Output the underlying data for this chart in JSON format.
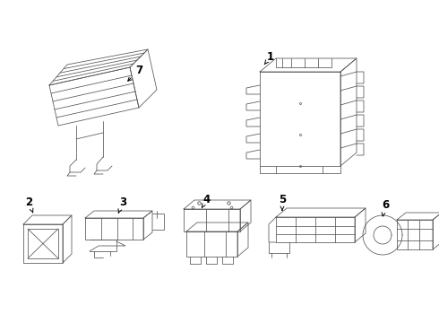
{
  "background_color": "#ffffff",
  "line_color": "#555555",
  "label_color": "#000000",
  "label_fontsize": 8.5,
  "arrow_color": "#000000",
  "figsize": [
    4.9,
    3.6
  ],
  "dpi": 100,
  "lw": 0.55
}
